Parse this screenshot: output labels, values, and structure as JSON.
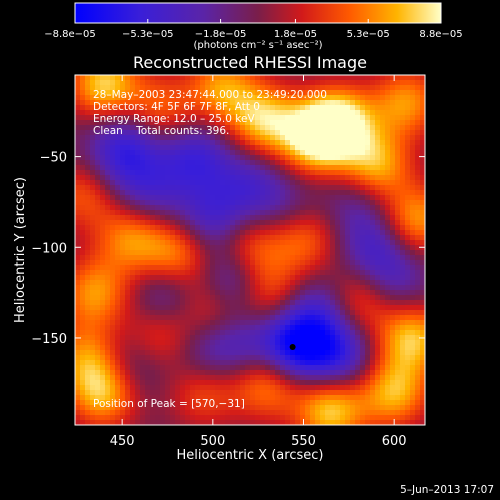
{
  "chart_data": {
    "type": "heatmap",
    "title": "Reconstructed RHESSI Image",
    "xlabel": "Heliocentric X (arcsec)",
    "ylabel": "Heliocentric Y (arcsec)",
    "xlim": [
      424,
      617
    ],
    "ylim": [
      -198,
      -5
    ],
    "x_ticks": [
      450,
      500,
      550,
      600
    ],
    "x_tick_labels": [
      "450",
      "500",
      "550",
      "600"
    ],
    "y_ticks": [
      -50,
      -100,
      -150
    ],
    "y_tick_labels": [
      "−50",
      "−100",
      "−150"
    ],
    "colorbar": {
      "range": [
        -8.8e-05,
        8.8e-05
      ],
      "ticks": [
        -8.8e-05,
        -5.3e-05,
        -1.8e-05,
        1.8e-05,
        5.3e-05,
        8.8e-05
      ],
      "tick_labels": [
        "−8.8e−05",
        "−5.3e−05",
        "−1.8e−05",
        "1.8e−05",
        "5.3e−05",
        "8.8e−05"
      ],
      "unit_label": "(photons cm⁻² s⁻¹ asec⁻²)"
    },
    "annotations": [
      "28–May–2003 23:47:44.000 to 23:49:20.000",
      "Detectors: 4F 5F 6F 7F 8F, Att 0",
      "Energy Range: 12.0 – 25.0 keV",
      "Clean    Total counts: 396."
    ],
    "peak_label": "Position of Peak = [570,−31]",
    "peak": [
      570,
      -31
    ],
    "timestamp": "5–Jun–2013 17:07",
    "blobs": [
      {
        "x": 440,
        "y": -10,
        "v": 0.9
      },
      {
        "x": 470,
        "y": -25,
        "v": 0.6
      },
      {
        "x": 505,
        "y": -12,
        "v": 0.7
      },
      {
        "x": 528,
        "y": -30,
        "v": 0.85
      },
      {
        "x": 556,
        "y": -40,
        "v": 0.95
      },
      {
        "x": 570,
        "y": -31,
        "v": 1.0
      },
      {
        "x": 590,
        "y": -55,
        "v": 0.8
      },
      {
        "x": 607,
        "y": -20,
        "v": 0.7
      },
      {
        "x": 612,
        "y": -85,
        "v": 0.75
      },
      {
        "x": 550,
        "y": -95,
        "v": 0.6
      },
      {
        "x": 520,
        "y": -100,
        "v": 0.55
      },
      {
        "x": 480,
        "y": -105,
        "v": 0.7
      },
      {
        "x": 455,
        "y": -95,
        "v": 0.65
      },
      {
        "x": 430,
        "y": -70,
        "v": 0.55
      },
      {
        "x": 435,
        "y": -125,
        "v": 0.7
      },
      {
        "x": 470,
        "y": -150,
        "v": 0.5
      },
      {
        "x": 500,
        "y": -130,
        "v": 0.6
      },
      {
        "x": 530,
        "y": -125,
        "v": 0.55
      },
      {
        "x": 580,
        "y": -130,
        "v": 0.6
      },
      {
        "x": 610,
        "y": -150,
        "v": 0.85
      },
      {
        "x": 600,
        "y": -180,
        "v": 0.8
      },
      {
        "x": 565,
        "y": -190,
        "v": 0.9
      },
      {
        "x": 530,
        "y": -175,
        "v": 0.7
      },
      {
        "x": 495,
        "y": -180,
        "v": 0.5
      },
      {
        "x": 440,
        "y": -180,
        "v": 0.85
      },
      {
        "x": 430,
        "y": -160,
        "v": 0.6
      },
      {
        "x": 455,
        "y": -40,
        "v": -0.5
      },
      {
        "x": 490,
        "y": -50,
        "v": -0.55
      },
      {
        "x": 520,
        "y": -65,
        "v": -0.4
      },
      {
        "x": 500,
        "y": -85,
        "v": -0.5
      },
      {
        "x": 465,
        "y": -70,
        "v": -0.4
      },
      {
        "x": 510,
        "y": -120,
        "v": -0.75
      },
      {
        "x": 545,
        "y": -155,
        "v": -0.95
      },
      {
        "x": 570,
        "y": -160,
        "v": -0.6
      },
      {
        "x": 590,
        "y": -100,
        "v": -0.45
      },
      {
        "x": 475,
        "y": -125,
        "v": -0.45
      },
      {
        "x": 455,
        "y": -165,
        "v": -0.4
      },
      {
        "x": 515,
        "y": -155,
        "v": -0.35
      },
      {
        "x": 600,
        "y": -120,
        "v": -0.35
      },
      {
        "x": 445,
        "y": -55,
        "v": -0.35
      },
      {
        "x": 540,
        "y": -80,
        "v": -0.3
      },
      {
        "x": 580,
        "y": -75,
        "v": -0.3
      },
      {
        "x": 495,
        "y": -160,
        "v": -0.3
      },
      {
        "x": 560,
        "y": -135,
        "v": -0.5
      }
    ]
  }
}
